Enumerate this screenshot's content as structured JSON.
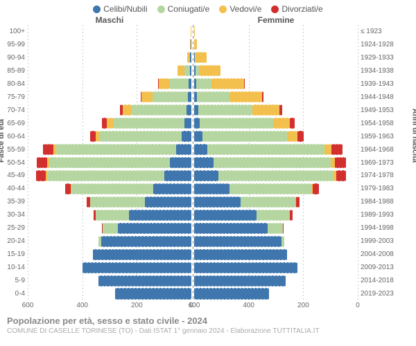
{
  "chart": {
    "type": "population-pyramid",
    "legend": [
      {
        "label": "Celibi/Nubili",
        "color": "#3e76ad"
      },
      {
        "label": "Coniugati/e",
        "color": "#b6d6a1"
      },
      {
        "label": "Vedovi/e",
        "color": "#f3c04e"
      },
      {
        "label": "Divorziati/e",
        "color": "#d22f2f"
      }
    ],
    "headers": {
      "male": "Maschi",
      "female": "Femmine"
    },
    "yaxis_left_title": "Fasce di età",
    "yaxis_right_title": "Anni di nascita",
    "x_max": 600,
    "x_ticks_pos": [
      600,
      400,
      200,
      0
    ],
    "x_ticks_labels_left": [
      "600",
      "400",
      "200",
      "0"
    ],
    "x_ticks_labels_right": [
      "0",
      "200",
      "400",
      "600"
    ],
    "age_labels": [
      "100+",
      "95-99",
      "90-94",
      "85-89",
      "80-84",
      "75-79",
      "70-74",
      "65-69",
      "60-64",
      "55-59",
      "50-54",
      "45-49",
      "40-44",
      "35-39",
      "30-34",
      "25-29",
      "20-24",
      "15-19",
      "10-14",
      "5-9",
      "0-4"
    ],
    "year_labels": [
      "≤ 1923",
      "1924-1928",
      "1929-1933",
      "1934-1938",
      "1939-1943",
      "1944-1948",
      "1949-1953",
      "1954-1958",
      "1959-1963",
      "1964-1968",
      "1969-1973",
      "1974-1978",
      "1979-1983",
      "1984-1988",
      "1989-1993",
      "1994-1998",
      "1999-2003",
      "2004-2008",
      "2009-2013",
      "2014-2018",
      "2019-2023"
    ],
    "males": [
      [
        0,
        0,
        2,
        0
      ],
      [
        2,
        0,
        3,
        0
      ],
      [
        4,
        2,
        10,
        0
      ],
      [
        6,
        20,
        25,
        0
      ],
      [
        10,
        70,
        40,
        2
      ],
      [
        12,
        130,
        40,
        4
      ],
      [
        18,
        200,
        35,
        10
      ],
      [
        25,
        260,
        25,
        18
      ],
      [
        35,
        300,
        15,
        20
      ],
      [
        55,
        440,
        10,
        40
      ],
      [
        80,
        440,
        8,
        40
      ],
      [
        100,
        430,
        5,
        35
      ],
      [
        140,
        300,
        3,
        20
      ],
      [
        170,
        200,
        1,
        12
      ],
      [
        230,
        120,
        0,
        8
      ],
      [
        270,
        55,
        0,
        2
      ],
      [
        330,
        10,
        0,
        0
      ],
      [
        360,
        0,
        0,
        0
      ],
      [
        400,
        0,
        0,
        0
      ],
      [
        340,
        0,
        0,
        0
      ],
      [
        280,
        0,
        0,
        0
      ]
    ],
    "females": [
      [
        0,
        0,
        3,
        0
      ],
      [
        1,
        0,
        8,
        0
      ],
      [
        3,
        2,
        40,
        0
      ],
      [
        5,
        12,
        80,
        0
      ],
      [
        8,
        55,
        120,
        2
      ],
      [
        10,
        120,
        120,
        4
      ],
      [
        14,
        200,
        100,
        10
      ],
      [
        20,
        270,
        60,
        18
      ],
      [
        30,
        310,
        40,
        22
      ],
      [
        48,
        430,
        25,
        40
      ],
      [
        70,
        430,
        15,
        42
      ],
      [
        90,
        420,
        10,
        38
      ],
      [
        130,
        300,
        6,
        22
      ],
      [
        170,
        200,
        3,
        14
      ],
      [
        230,
        120,
        1,
        10
      ],
      [
        270,
        55,
        0,
        4
      ],
      [
        320,
        10,
        0,
        0
      ],
      [
        340,
        0,
        0,
        0
      ],
      [
        380,
        0,
        0,
        0
      ],
      [
        335,
        0,
        0,
        0
      ],
      [
        275,
        0,
        0,
        0
      ]
    ],
    "background_color": "#ffffff",
    "grid_color": "#d8d8d8",
    "caption_line1": "Popolazione per età, sesso e stato civile - 2024",
    "caption_line2": "COMUNE DI CASELLE TORINESE (TO) - Dati ISTAT 1° gennaio 2024 - Elaborazione TUTTITALIA.IT"
  }
}
